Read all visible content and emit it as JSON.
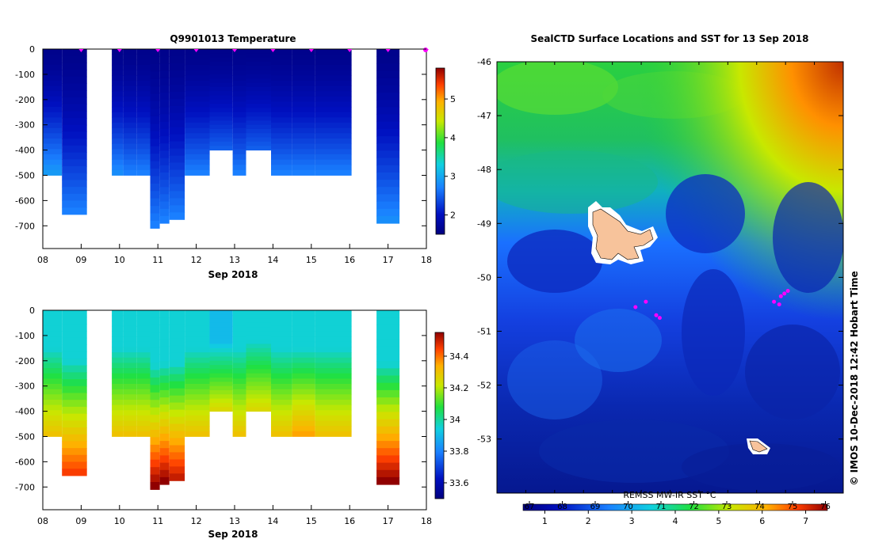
{
  "temp_panel": {
    "title": "Q9901013  Temperature",
    "xticks": [
      "08",
      "09",
      "10",
      "11",
      "12",
      "13",
      "14",
      "15",
      "16",
      "17",
      "18"
    ],
    "yticks": [
      "0",
      "-100",
      "-200",
      "-300",
      "-400",
      "-500",
      "-600",
      "-700"
    ],
    "xsub": "Sep 2018",
    "cbar_ticks": [
      "2",
      "3",
      "4",
      "5"
    ]
  },
  "sal_panel": {
    "xticks": [
      "08",
      "09",
      "10",
      "11",
      "12",
      "13",
      "14",
      "15",
      "16",
      "17",
      "18"
    ],
    "yticks": [
      "0",
      "-100",
      "-200",
      "-300",
      "-400",
      "-500",
      "-600",
      "-700"
    ],
    "xsub": "Sep 2018",
    "cbar_ticks": [
      "33.6",
      "33.8",
      "34",
      "34.2",
      "34.4"
    ]
  },
  "map_panel": {
    "title": "SealCTD Surface Locations and SST for 13 Sep 2018",
    "yticks": [
      "-46",
      "-47",
      "-48",
      "-49",
      "-50",
      "-51",
      "-52",
      "-53"
    ],
    "cbar_top_ticks": [
      "67",
      "68",
      "69",
      "70",
      "71",
      "72",
      "73",
      "74",
      "75",
      "76"
    ],
    "cbar_bottom_ticks": [
      "1",
      "2",
      "3",
      "4",
      "5",
      "6",
      "7"
    ],
    "product_label": "REMSS MW-IR SST °C",
    "credit": "© IMOS 10-Dec-2018 12:42 Hobart Time"
  },
  "colors": {
    "deep_blue": "#0a1f8a",
    "marker": "#ff00ff",
    "island": "#f7c39b"
  },
  "chart_data": [
    {
      "type": "heatmap",
      "name": "temperature_section",
      "title": "Q9901013  Temperature",
      "xlabel": "Sep 2018",
      "xlim": [
        8,
        18
      ],
      "ylim": [
        -790,
        0
      ],
      "colorbar_range": [
        1.5,
        5.8
      ],
      "profiles": [
        {
          "t": 8.0,
          "dx": 0.5,
          "depth": 500,
          "surface": 1.6,
          "deep": 2.9
        },
        {
          "t": 8.5,
          "dx": 0.65,
          "depth": 655,
          "surface": 1.6,
          "deep": 2.7
        },
        {
          "t": 9.8,
          "dx": 0.3,
          "depth": 500,
          "surface": 1.6,
          "deep": 2.8
        },
        {
          "t": 10.1,
          "dx": 0.35,
          "depth": 500,
          "surface": 1.6,
          "deep": 2.7
        },
        {
          "t": 10.45,
          "dx": 0.35,
          "depth": 500,
          "surface": 1.6,
          "deep": 2.7
        },
        {
          "t": 10.8,
          "dx": 0.25,
          "depth": 710,
          "surface": 1.6,
          "deep": 2.7
        },
        {
          "t": 11.05,
          "dx": 0.25,
          "depth": 690,
          "surface": 1.6,
          "deep": 2.7
        },
        {
          "t": 11.3,
          "dx": 0.4,
          "depth": 675,
          "surface": 1.6,
          "deep": 2.7
        },
        {
          "t": 11.7,
          "dx": 0.65,
          "depth": 500,
          "surface": 1.6,
          "deep": 2.7
        },
        {
          "t": 12.35,
          "dx": 0.6,
          "depth": 400,
          "surface": 1.6,
          "deep": 2.5
        },
        {
          "t": 12.95,
          "dx": 0.35,
          "depth": 500,
          "surface": 1.6,
          "deep": 2.7
        },
        {
          "t": 13.3,
          "dx": 0.65,
          "depth": 400,
          "surface": 1.6,
          "deep": 2.5
        },
        {
          "t": 13.95,
          "dx": 0.55,
          "depth": 500,
          "surface": 1.6,
          "deep": 2.7
        },
        {
          "t": 14.5,
          "dx": 0.6,
          "depth": 500,
          "surface": 1.6,
          "deep": 2.7
        },
        {
          "t": 15.1,
          "dx": 0.95,
          "depth": 500,
          "surface": 1.6,
          "deep": 2.7
        },
        {
          "t": 16.7,
          "dx": 0.6,
          "depth": 690,
          "surface": 1.6,
          "deep": 2.8
        }
      ],
      "surface_markers": [
        9.0,
        10.0,
        11.0,
        12.0,
        13.0,
        14.0,
        15.0,
        16.0,
        17.0,
        18.0
      ]
    },
    {
      "type": "heatmap",
      "name": "salinity_section",
      "xlabel": "Sep 2018",
      "xlim": [
        8,
        18
      ],
      "ylim": [
        -790,
        0
      ],
      "colorbar_range": [
        33.5,
        34.55
      ],
      "profiles": [
        {
          "t": 8.0,
          "dx": 0.5,
          "depth": 500,
          "surface": 33.95,
          "deep": 34.3
        },
        {
          "t": 8.5,
          "dx": 0.65,
          "depth": 655,
          "surface": 33.95,
          "deep": 34.45
        },
        {
          "t": 9.8,
          "dx": 0.3,
          "depth": 500,
          "surface": 33.95,
          "deep": 34.3
        },
        {
          "t": 10.1,
          "dx": 0.35,
          "depth": 500,
          "surface": 33.95,
          "deep": 34.3
        },
        {
          "t": 10.45,
          "dx": 0.35,
          "depth": 500,
          "surface": 33.95,
          "deep": 34.3
        },
        {
          "t": 10.8,
          "dx": 0.25,
          "depth": 710,
          "surface": 33.95,
          "deep": 34.55
        },
        {
          "t": 11.05,
          "dx": 0.25,
          "depth": 690,
          "surface": 33.95,
          "deep": 34.55
        },
        {
          "t": 11.3,
          "dx": 0.4,
          "depth": 675,
          "surface": 33.95,
          "deep": 34.5
        },
        {
          "t": 11.7,
          "dx": 0.65,
          "depth": 500,
          "surface": 33.95,
          "deep": 34.3
        },
        {
          "t": 12.35,
          "dx": 0.6,
          "depth": 400,
          "surface": 33.9,
          "deep": 34.25
        },
        {
          "t": 12.95,
          "dx": 0.35,
          "depth": 500,
          "surface": 33.95,
          "deep": 34.3
        },
        {
          "t": 13.3,
          "dx": 0.65,
          "depth": 400,
          "surface": 33.95,
          "deep": 34.25
        },
        {
          "t": 13.95,
          "dx": 0.55,
          "depth": 500,
          "surface": 33.95,
          "deep": 34.3
        },
        {
          "t": 14.5,
          "dx": 0.6,
          "depth": 500,
          "surface": 33.95,
          "deep": 34.35
        },
        {
          "t": 15.1,
          "dx": 0.95,
          "depth": 500,
          "surface": 33.95,
          "deep": 34.3
        },
        {
          "t": 16.7,
          "dx": 0.6,
          "depth": 690,
          "surface": 33.95,
          "deep": 34.55
        }
      ]
    },
    {
      "type": "heatmap",
      "name": "sst_map",
      "title": "SealCTD Surface Locations and SST for 13 Sep 2018",
      "ylim": [
        -54,
        -46
      ],
      "colorbar_range": [
        0.5,
        7.5
      ],
      "seal_locations": [
        {
          "lat": -50.35,
          "lon_frac": 0.82
        },
        {
          "lat": -50.25,
          "lon_frac": 0.84
        },
        {
          "lat": -50.45,
          "lon_frac": 0.8
        },
        {
          "lat": -50.5,
          "lon_frac": 0.815
        },
        {
          "lat": -50.3,
          "lon_frac": 0.83
        },
        {
          "lat": -50.7,
          "lon_frac": 0.46
        },
        {
          "lat": -50.55,
          "lon_frac": 0.4
        },
        {
          "lat": -50.75,
          "lon_frac": 0.47
        },
        {
          "lat": -50.45,
          "lon_frac": 0.43
        }
      ]
    }
  ]
}
